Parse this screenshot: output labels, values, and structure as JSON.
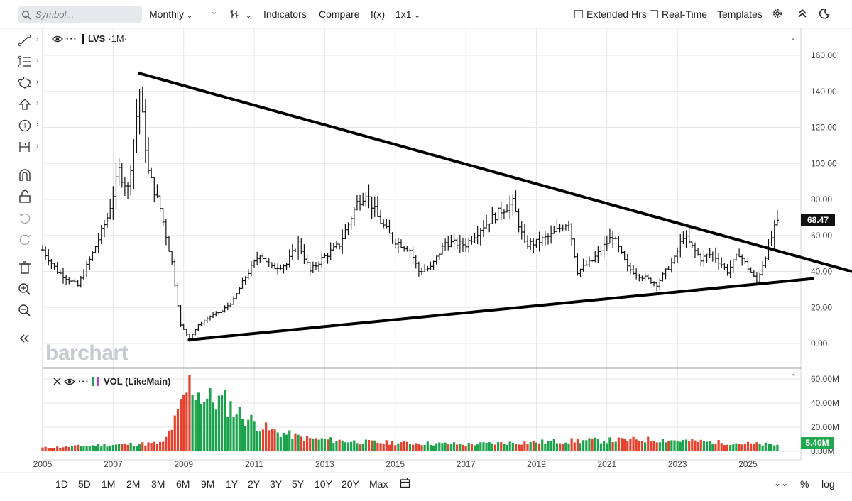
{
  "toolbar": {
    "search_placeholder": "Symbol...",
    "interval": "Monthly",
    "indicators": "Indicators",
    "compare": "Compare",
    "fx": "f(x)",
    "layout": "1x1",
    "extended_hrs": "Extended Hrs",
    "real_time": "Real-Time",
    "templates": "Templates"
  },
  "chart_header": {
    "symbol": "LVS",
    "period": "·1M·"
  },
  "volume_header": {
    "label": "VOL (LikeMain)"
  },
  "watermark": "barchart",
  "last_price": "68.47",
  "last_volume": "5.40M",
  "range_buttons": [
    "1D",
    "5D",
    "1M",
    "2M",
    "3M",
    "6M",
    "9M",
    "1Y",
    "2Y",
    "3Y",
    "5Y",
    "10Y",
    "20Y",
    "Max"
  ],
  "bottom_right": {
    "percent": "%",
    "log": "log"
  },
  "icons": [
    "search-icon",
    "chevron-down-icon",
    "bar-style-icon",
    "gear-icon",
    "collapse-up-icon",
    "dark-mode-icon",
    "line-tool-icon",
    "fib-tool-icon",
    "shape-tool-icon",
    "arrow-tool-icon",
    "annotation-tool-icon",
    "measure-tool-icon",
    "magnet-icon",
    "lock-icon",
    "undo-icon",
    "redo-icon",
    "trash-icon",
    "zoom-in-icon",
    "zoom-out-icon",
    "collapse-left-icon",
    "eye-icon",
    "more-icon",
    "close-icon",
    "calendar-icon"
  ],
  "colors": {
    "up_volume": "#1aa34a",
    "down_volume": "#e5412d",
    "price_bars": "#111111",
    "trendline": "#000000",
    "grid": "#e4e6e9"
  },
  "chart_data": [
    {
      "type": "ohlc",
      "title": "LVS ·1M·",
      "frequency": "monthly",
      "x_tick_labels": [
        "2005",
        "2007",
        "2009",
        "2011",
        "2013",
        "2015",
        "2017",
        "2019",
        "2021",
        "2023",
        "2025"
      ],
      "y_tick_labels": [
        "0.00",
        "20.00",
        "40.00",
        "60.00",
        "80.00",
        "100.00",
        "120.00",
        "140.00",
        "160.00"
      ],
      "ylim": [
        0,
        160
      ],
      "last_value": 68.47,
      "anchors": [
        {
          "date": "2005-01",
          "price": 52
        },
        {
          "date": "2005-06",
          "price": 40
        },
        {
          "date": "2006-01",
          "price": 32
        },
        {
          "date": "2006-06",
          "price": 50
        },
        {
          "date": "2006-11",
          "price": 70
        },
        {
          "date": "2007-03",
          "price": 96
        },
        {
          "date": "2007-06",
          "price": 86
        },
        {
          "date": "2007-10",
          "price": 140
        },
        {
          "date": "2008-01",
          "price": 95
        },
        {
          "date": "2008-05",
          "price": 75
        },
        {
          "date": "2008-09",
          "price": 45
        },
        {
          "date": "2008-12",
          "price": 10
        },
        {
          "date": "2009-03",
          "price": 3
        },
        {
          "date": "2009-06",
          "price": 10
        },
        {
          "date": "2009-10",
          "price": 15
        },
        {
          "date": "2010-02",
          "price": 18
        },
        {
          "date": "2010-06",
          "price": 24
        },
        {
          "date": "2010-10",
          "price": 37
        },
        {
          "date": "2011-03",
          "price": 50
        },
        {
          "date": "2011-07",
          "price": 42
        },
        {
          "date": "2011-12",
          "price": 44
        },
        {
          "date": "2012-04",
          "price": 56
        },
        {
          "date": "2012-08",
          "price": 40
        },
        {
          "date": "2012-12",
          "price": 47
        },
        {
          "date": "2013-06",
          "price": 55
        },
        {
          "date": "2013-12",
          "price": 78
        },
        {
          "date": "2014-03",
          "price": 84
        },
        {
          "date": "2014-07",
          "price": 70
        },
        {
          "date": "2014-12",
          "price": 58
        },
        {
          "date": "2015-06",
          "price": 52
        },
        {
          "date": "2015-09",
          "price": 40
        },
        {
          "date": "2016-01",
          "price": 42
        },
        {
          "date": "2016-06",
          "price": 56
        },
        {
          "date": "2017-01",
          "price": 55
        },
        {
          "date": "2017-06",
          "price": 64
        },
        {
          "date": "2018-01",
          "price": 74
        },
        {
          "date": "2018-05",
          "price": 78
        },
        {
          "date": "2018-09",
          "price": 55
        },
        {
          "date": "2019-01",
          "price": 56
        },
        {
          "date": "2019-06",
          "price": 60
        },
        {
          "date": "2019-12",
          "price": 68
        },
        {
          "date": "2020-03",
          "price": 40
        },
        {
          "date": "2020-08",
          "price": 46
        },
        {
          "date": "2021-03",
          "price": 60
        },
        {
          "date": "2021-08",
          "price": 42
        },
        {
          "date": "2021-12",
          "price": 38
        },
        {
          "date": "2022-06",
          "price": 33
        },
        {
          "date": "2022-12",
          "price": 47
        },
        {
          "date": "2023-03",
          "price": 60
        },
        {
          "date": "2023-09",
          "price": 47
        },
        {
          "date": "2024-01",
          "price": 50
        },
        {
          "date": "2024-06",
          "price": 40
        },
        {
          "date": "2024-10",
          "price": 50
        },
        {
          "date": "2025-04",
          "price": 34
        },
        {
          "date": "2025-08",
          "price": 54
        },
        {
          "date": "2025-11",
          "price": 68.47
        }
      ],
      "trendlines": [
        {
          "from": {
            "date": "2007-10",
            "price": 150
          },
          "to": {
            "date": "2025-12",
            "price": 51
          },
          "extends_right": true
        },
        {
          "from": {
            "date": "2009-03",
            "price": 2
          },
          "to": {
            "date": "2026-11",
            "price": 36
          }
        }
      ]
    },
    {
      "type": "bar",
      "title": "VOL (LikeMain)",
      "y_tick_labels": [
        "0.00M",
        "20.00M",
        "40.00M",
        "60.00M"
      ],
      "ylim": [
        0,
        60000000
      ],
      "last_value_label": "5.40M",
      "anchors": [
        {
          "date": "2005-01",
          "volume": 3000000
        },
        {
          "date": "2006-06",
          "volume": 5000000
        },
        {
          "date": "2007-06",
          "volume": 6000000
        },
        {
          "date": "2008-06",
          "volume": 7000000
        },
        {
          "date": "2008-10",
          "volume": 25000000
        },
        {
          "date": "2009-03",
          "volume": 57000000
        },
        {
          "date": "2009-08",
          "volume": 45000000
        },
        {
          "date": "2010-03",
          "volume": 42000000
        },
        {
          "date": "2010-09",
          "volume": 30000000
        },
        {
          "date": "2011-06",
          "volume": 18000000
        },
        {
          "date": "2012-06",
          "volume": 11000000
        },
        {
          "date": "2014-01",
          "volume": 8000000
        },
        {
          "date": "2017-01",
          "volume": 6000000
        },
        {
          "date": "2020-03",
          "volume": 9000000
        },
        {
          "date": "2022-06",
          "volume": 10000000
        },
        {
          "date": "2025-11",
          "volume": 5400000
        }
      ]
    }
  ]
}
